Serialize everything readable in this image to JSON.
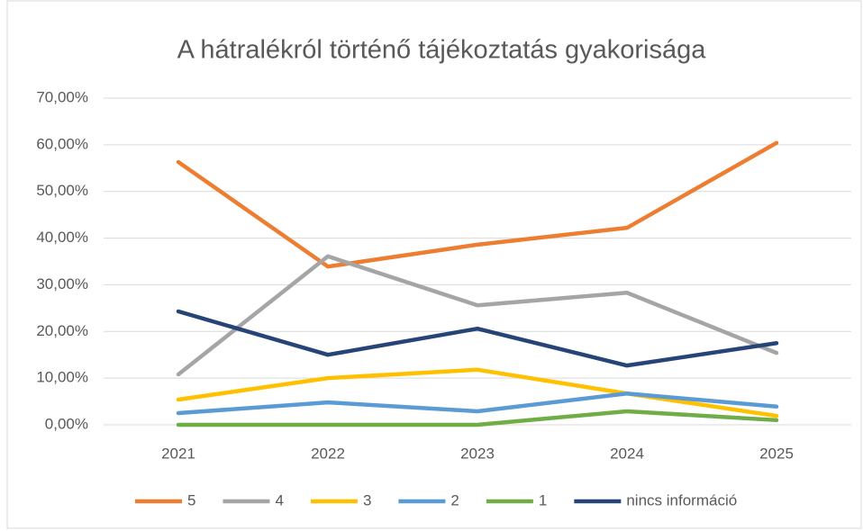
{
  "chart_data": {
    "type": "line",
    "title": "A hátralékról történő tájékoztatás gyakorisága",
    "categories": [
      "2021",
      "2022",
      "2023",
      "2024",
      "2025"
    ],
    "series": [
      {
        "name": "5",
        "color": "#ED7D31",
        "values": [
          56.3,
          33.9,
          38.6,
          42.2,
          60.4
        ]
      },
      {
        "name": "4",
        "color": "#A5A5A5",
        "values": [
          10.8,
          36.1,
          25.6,
          28.3,
          15.4
        ]
      },
      {
        "name": "3",
        "color": "#FFC000",
        "values": [
          5.4,
          10.0,
          11.8,
          6.7,
          1.9
        ]
      },
      {
        "name": "2",
        "color": "#5B9BD5",
        "values": [
          2.5,
          4.8,
          2.9,
          6.7,
          3.9
        ]
      },
      {
        "name": "1",
        "color": "#70AD47",
        "values": [
          0,
          0,
          0,
          2.9,
          1.0
        ]
      },
      {
        "name": "nincs információ",
        "color": "#264478",
        "values": [
          24.3,
          15.0,
          20.6,
          12.7,
          17.5
        ]
      }
    ],
    "ylim": [
      0,
      70
    ],
    "yticks": [
      {
        "value": 0,
        "label": "0,00%"
      },
      {
        "value": 10,
        "label": "10,00%"
      },
      {
        "value": 20,
        "label": "20,00%"
      },
      {
        "value": 30,
        "label": "30,00%"
      },
      {
        "value": 40,
        "label": "40,00%"
      },
      {
        "value": 50,
        "label": "50,00%"
      },
      {
        "value": 60,
        "label": "60,00%"
      },
      {
        "value": 70,
        "label": "70,00%"
      }
    ],
    "grid": true,
    "legend": "bottom"
  }
}
